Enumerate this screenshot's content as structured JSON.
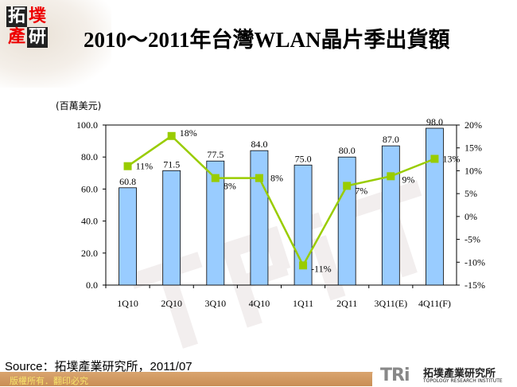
{
  "logo": {
    "chars": [
      "拓",
      "墣",
      "產",
      "研"
    ]
  },
  "title": "2010～2011年台灣WLAN晶片季出貨額",
  "chart_data": {
    "type": "bar+line",
    "unit_label": "(百萬美元)",
    "categories": [
      "1Q10",
      "2Q10",
      "3Q10",
      "4Q10",
      "1Q11",
      "2Q11",
      "3Q11(E)",
      "4Q11(F)"
    ],
    "bar_series": {
      "values": [
        60.8,
        71.5,
        77.5,
        84.0,
        75.0,
        80.0,
        87.0,
        98.0
      ],
      "labels": [
        "60.8",
        "71.5",
        "77.5",
        "84.0",
        "75.0",
        "80.0",
        "87.0",
        "98.0"
      ],
      "color": "#99ccff"
    },
    "line_series": {
      "values": [
        11,
        17.6,
        8.4,
        8.4,
        -10.7,
        6.7,
        8.8,
        12.6
      ],
      "labels": [
        "11%",
        "18%",
        "8%",
        "8%",
        "-11%",
        "7%",
        "9%",
        "13%"
      ],
      "color": "#99cc00"
    },
    "left_axis": {
      "ylim": [
        0,
        100
      ],
      "ticks": [
        "0.0",
        "20.0",
        "40.0",
        "60.0",
        "80.0",
        "100.0"
      ]
    },
    "right_axis": {
      "ylim": [
        -15,
        20
      ],
      "ticks": [
        "-15%",
        "-10%",
        "-5%",
        "0%",
        "5%",
        "10%",
        "15%",
        "20%"
      ]
    },
    "grid": false,
    "legend": "none"
  },
  "source": "Source：拓墣產業研究所，2011/07",
  "footer": {
    "copyright": "版權所有．翻印必究",
    "brand_mark": "TRi",
    "brand_cn": "拓墣產業研究所",
    "brand_en": "TOPOLOGY RESEARCH INSTITUTE"
  }
}
